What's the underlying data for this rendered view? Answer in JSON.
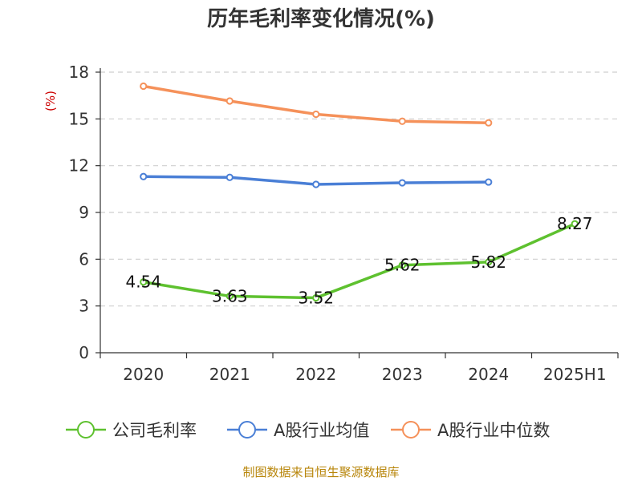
{
  "chart_data": {
    "type": "line",
    "title": "历年毛利率变化情况(%)",
    "ylabel": "(%)",
    "xlabel": "",
    "categories": [
      "2020",
      "2021",
      "2022",
      "2023",
      "2024",
      "2025H1"
    ],
    "yticks": [
      "0",
      "3",
      "6",
      "9",
      "12",
      "15",
      "18"
    ],
    "ylim": [
      0,
      18
    ],
    "grid": true,
    "legend_position": "bottom",
    "series": [
      {
        "name": "公司毛利率",
        "color": "#5ec12f",
        "values": [
          4.54,
          3.63,
          3.52,
          5.62,
          5.82,
          8.27
        ],
        "labels": [
          "4.54",
          "3.63",
          "3.52",
          "5.62",
          "5.82",
          "8.27"
        ]
      },
      {
        "name": "A股行业均值",
        "color": "#4a7fd6",
        "values": [
          11.3,
          11.25,
          10.8,
          10.9,
          10.95,
          null
        ],
        "labels": []
      },
      {
        "name": "A股行业中位数",
        "color": "#f5915a",
        "values": [
          17.1,
          16.15,
          15.3,
          14.85,
          14.75,
          null
        ],
        "labels": []
      }
    ]
  },
  "source": "制图数据来自恒生聚源数据库"
}
